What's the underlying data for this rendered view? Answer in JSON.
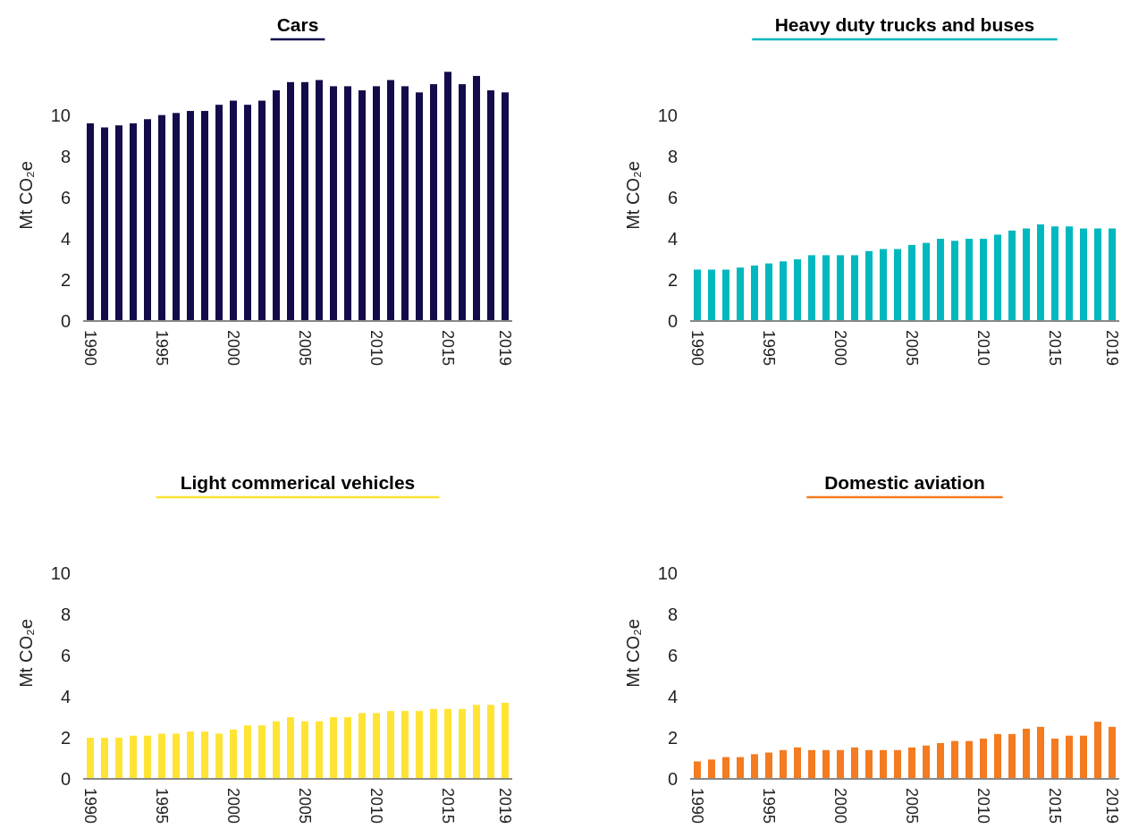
{
  "chart_data": [
    {
      "type": "bar",
      "title": "Cars",
      "ylabel": "Mt CO₂e",
      "categories": [
        "1990",
        null,
        null,
        null,
        null,
        "1995",
        null,
        null,
        null,
        null,
        "2000",
        null,
        null,
        null,
        null,
        "2005",
        null,
        null,
        null,
        null,
        "2010",
        null,
        null,
        null,
        null,
        "2015",
        null,
        null,
        null,
        "2019"
      ],
      "series": [
        {
          "color": "#130c4b",
          "values": [
            9.6,
            9.4,
            9.5,
            9.6,
            9.8,
            10.0,
            10.1,
            10.2,
            10.2,
            10.5,
            10.7,
            10.5,
            10.7,
            11.2,
            11.6,
            11.6,
            11.7,
            11.4,
            11.4,
            11.2,
            11.4,
            11.7,
            11.4,
            11.1,
            11.5,
            12.1,
            11.5,
            11.9,
            11.2,
            11.1
          ]
        }
      ],
      "ylim": [
        0,
        12.2
      ],
      "yticks": [
        0,
        2,
        4,
        6,
        8,
        10
      ],
      "grid": false
    },
    {
      "type": "bar",
      "title": "Heavy duty trucks and buses",
      "ylabel": "Mt CO₂e",
      "categories": [
        "1990",
        null,
        null,
        null,
        null,
        "1995",
        null,
        null,
        null,
        null,
        "2000",
        null,
        null,
        null,
        null,
        "2005",
        null,
        null,
        null,
        null,
        "2010",
        null,
        null,
        null,
        null,
        "2015",
        null,
        null,
        null,
        "2019"
      ],
      "series": [
        {
          "color": "#00b8be",
          "values": [
            2.5,
            2.5,
            2.5,
            2.6,
            2.7,
            2.8,
            2.9,
            3.0,
            3.2,
            3.2,
            3.2,
            3.2,
            3.4,
            3.5,
            3.5,
            3.7,
            3.8,
            4.0,
            3.9,
            4.0,
            4.0,
            4.2,
            4.4,
            4.5,
            4.7,
            4.6,
            4.6,
            4.5,
            4.5,
            4.5
          ]
        }
      ],
      "ylim": [
        0,
        10
      ],
      "yticks": [
        0,
        2,
        4,
        6,
        8,
        10
      ],
      "grid": false
    },
    {
      "type": "bar",
      "title": "Light commerical vehicles",
      "ylabel": "Mt CO₂e",
      "categories": [
        "1990",
        null,
        null,
        null,
        null,
        "1995",
        null,
        null,
        null,
        null,
        "2000",
        null,
        null,
        null,
        null,
        "2005",
        null,
        null,
        null,
        null,
        "2010",
        null,
        null,
        null,
        null,
        "2015",
        null,
        null,
        null,
        "2019"
      ],
      "series": [
        {
          "color": "#ffe435",
          "values": [
            2.0,
            2.0,
            2.0,
            2.1,
            2.1,
            2.2,
            2.2,
            2.3,
            2.3,
            2.2,
            2.4,
            2.6,
            2.6,
            2.8,
            3.0,
            2.8,
            2.8,
            3.0,
            3.0,
            3.2,
            3.2,
            3.3,
            3.3,
            3.3,
            3.4,
            3.4,
            3.4,
            3.6,
            3.6,
            3.7
          ]
        }
      ],
      "ylim": [
        0,
        10
      ],
      "yticks": [
        0,
        2,
        4,
        6,
        8,
        10
      ],
      "grid": false
    },
    {
      "type": "bar",
      "title": "Domestic aviation",
      "ylabel": "Mt CO₂e",
      "categories": [
        "1990",
        null,
        null,
        null,
        null,
        "1995",
        null,
        null,
        null,
        null,
        "2000",
        null,
        null,
        null,
        null,
        "2005",
        null,
        null,
        null,
        null,
        "2010",
        null,
        null,
        null,
        null,
        "2015",
        null,
        null,
        null,
        "2019"
      ],
      "series": [
        {
          "color": "#f47b20",
          "values": [
            0.85,
            0.94,
            1.06,
            1.06,
            1.2,
            1.28,
            1.4,
            1.53,
            1.4,
            1.4,
            1.4,
            1.53,
            1.4,
            1.4,
            1.4,
            1.53,
            1.62,
            1.74,
            1.84,
            1.84,
            1.96,
            2.18,
            2.18,
            2.44,
            2.53,
            1.96,
            2.1,
            2.1,
            2.78,
            2.53
          ]
        }
      ],
      "ylim": [
        0,
        10
      ],
      "yticks": [
        0,
        2,
        4,
        6,
        8,
        10
      ],
      "grid": false
    }
  ]
}
